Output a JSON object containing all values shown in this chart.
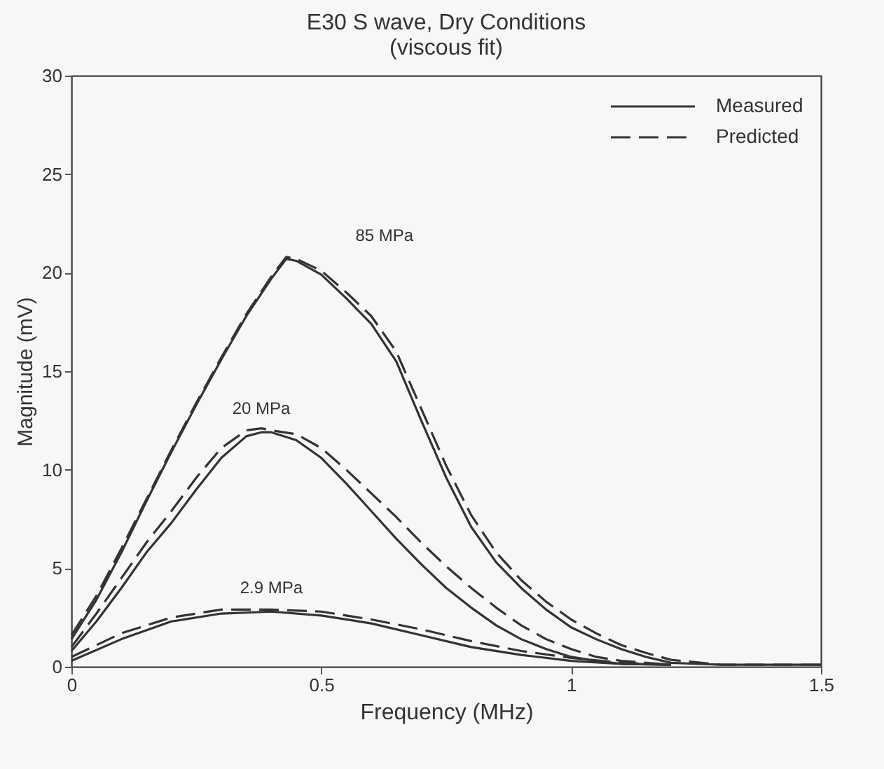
{
  "chart_data": {
    "type": "line",
    "title": "E30 S wave, Dry Conditions",
    "subtitle": "(viscous fit)",
    "xlabel": "Frequency (MHz)",
    "ylabel": "Magnitude (mV)",
    "xlim": [
      0,
      1.5
    ],
    "xticks": [
      0,
      0.5,
      1,
      1.5
    ],
    "ylim": [
      0,
      30
    ],
    "yticks": [
      0,
      5,
      10,
      15,
      20,
      25,
      30
    ],
    "legend": "top right",
    "series": [
      {
        "name": "Measured",
        "color": "#333333",
        "line_style": "solid",
        "x": [
          0,
          0.05,
          0.1,
          0.15,
          0.2,
          0.25,
          0.3,
          0.35,
          0.4,
          0.43,
          0.45,
          0.5,
          0.55,
          0.6,
          0.65,
          0.7,
          0.75,
          0.8,
          0.85,
          0.9,
          0.95,
          1.0,
          1.05,
          1.1,
          1.15,
          1.2,
          1.3,
          1.5
        ],
        "values": [
          1.4,
          3.4,
          5.8,
          8.4,
          10.9,
          13.3,
          15.6,
          17.8,
          19.7,
          20.7,
          20.6,
          19.9,
          18.7,
          17.4,
          15.5,
          12.5,
          9.6,
          7.1,
          5.3,
          4.0,
          2.9,
          2.0,
          1.4,
          0.9,
          0.5,
          0.2,
          0.1,
          0.1
        ]
      },
      {
        "name": "Predicted",
        "color": "#333333",
        "line_style": "dashed",
        "x": [
          0,
          0.05,
          0.1,
          0.15,
          0.2,
          0.25,
          0.3,
          0.35,
          0.4,
          0.43,
          0.45,
          0.5,
          0.55,
          0.6,
          0.65,
          0.7,
          0.75,
          0.8,
          0.85,
          0.9,
          0.95,
          1.0,
          1.05,
          1.1,
          1.15,
          1.2,
          1.3,
          1.5
        ],
        "values": [
          1.6,
          3.6,
          6.0,
          8.5,
          11.0,
          13.4,
          15.7,
          17.9,
          19.8,
          20.8,
          20.7,
          20.1,
          19.0,
          17.8,
          16.0,
          13.1,
          10.2,
          7.7,
          5.8,
          4.4,
          3.3,
          2.4,
          1.7,
          1.1,
          0.7,
          0.35,
          0.1,
          0.1
        ]
      },
      {
        "color": "#333333",
        "line_style": "solid",
        "x": [
          0,
          0.05,
          0.1,
          0.15,
          0.2,
          0.25,
          0.3,
          0.35,
          0.38,
          0.4,
          0.45,
          0.5,
          0.55,
          0.6,
          0.65,
          0.7,
          0.75,
          0.8,
          0.85,
          0.9,
          0.95,
          1.0,
          1.05,
          1.1,
          1.2
        ],
        "values": [
          0.8,
          2.3,
          4.0,
          5.8,
          7.3,
          9.0,
          10.6,
          11.7,
          11.9,
          11.9,
          11.5,
          10.6,
          9.3,
          7.9,
          6.5,
          5.2,
          4.0,
          3.0,
          2.1,
          1.4,
          0.9,
          0.5,
          0.3,
          0.15,
          0.1
        ]
      },
      {
        "color": "#333333",
        "line_style": "dashed",
        "x": [
          0,
          0.05,
          0.1,
          0.15,
          0.2,
          0.25,
          0.3,
          0.35,
          0.38,
          0.4,
          0.45,
          0.5,
          0.55,
          0.6,
          0.65,
          0.7,
          0.75,
          0.8,
          0.85,
          0.9,
          0.95,
          1.0,
          1.05,
          1.1,
          1.2
        ],
        "values": [
          1.0,
          2.7,
          4.5,
          6.3,
          7.9,
          9.6,
          11.1,
          12.0,
          12.1,
          12.0,
          11.8,
          11.1,
          10.0,
          8.8,
          7.6,
          6.3,
          5.1,
          4.0,
          3.0,
          2.1,
          1.4,
          0.9,
          0.5,
          0.3,
          0.1
        ]
      },
      {
        "color": "#333333",
        "line_style": "solid",
        "x": [
          0,
          0.1,
          0.2,
          0.3,
          0.4,
          0.5,
          0.6,
          0.7,
          0.8,
          0.9,
          1.0,
          1.1,
          1.2
        ],
        "values": [
          0.3,
          1.4,
          2.3,
          2.7,
          2.8,
          2.6,
          2.2,
          1.6,
          1.0,
          0.6,
          0.3,
          0.15,
          0.1
        ]
      },
      {
        "color": "#333333",
        "line_style": "dashed",
        "x": [
          0,
          0.1,
          0.2,
          0.3,
          0.4,
          0.5,
          0.6,
          0.7,
          0.8,
          0.9,
          1.0,
          1.1,
          1.2
        ],
        "values": [
          0.5,
          1.7,
          2.5,
          2.9,
          2.9,
          2.8,
          2.4,
          1.9,
          1.3,
          0.8,
          0.45,
          0.2,
          0.1
        ]
      }
    ],
    "annotations": [
      "85 MPa",
      "20 MPa",
      "2.9 MPa"
    ]
  }
}
